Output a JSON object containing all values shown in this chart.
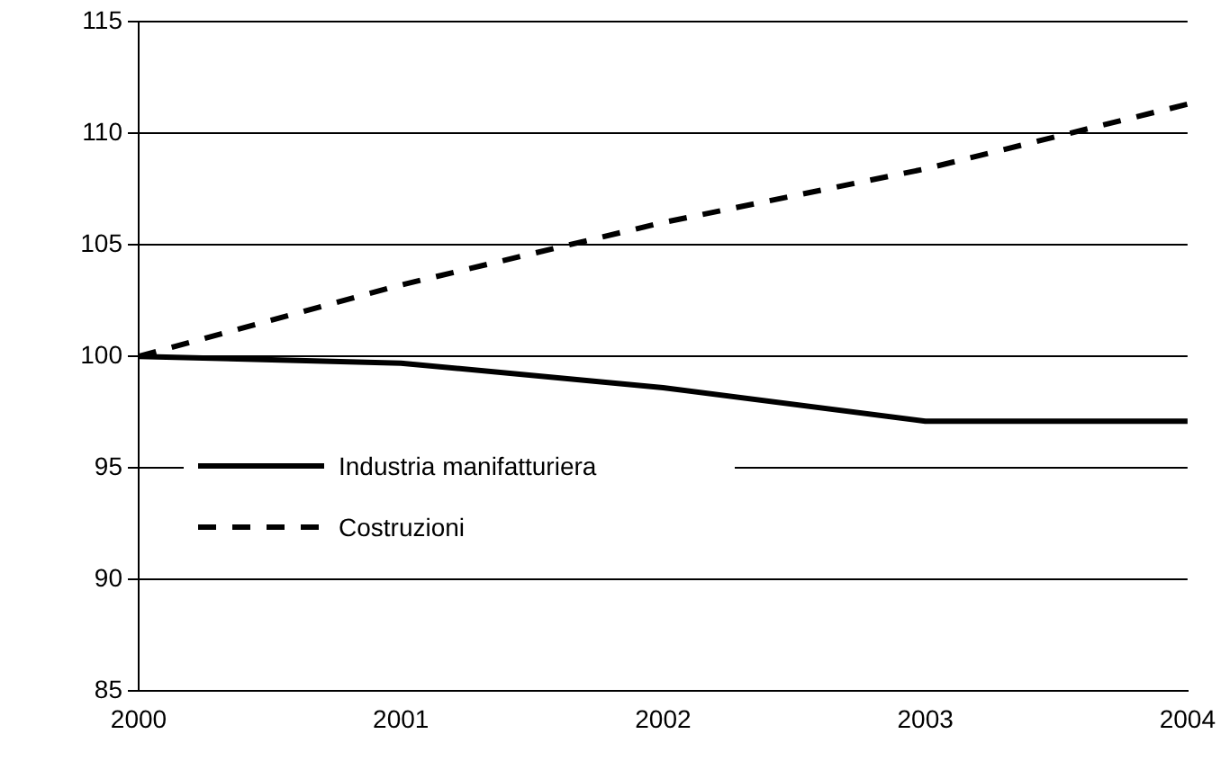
{
  "chart_data": {
    "type": "line",
    "categories": [
      "2000",
      "2001",
      "2002",
      "2003",
      "2004"
    ],
    "series": [
      {
        "name": "Industria manifatturiera",
        "color": "#000000",
        "line_style": "solid",
        "values": [
          100,
          99.7,
          98.6,
          97.1,
          97.1
        ]
      },
      {
        "name": "Costruzioni",
        "color": "#000000",
        "line_style": "dashed",
        "values": [
          100,
          103.2,
          106.0,
          108.4,
          111.3
        ]
      }
    ],
    "ylim": [
      85,
      115
    ],
    "yticks": [
      85,
      90,
      95,
      100,
      105,
      110,
      115
    ],
    "grid": "y",
    "legend": "left",
    "marker": "none"
  }
}
